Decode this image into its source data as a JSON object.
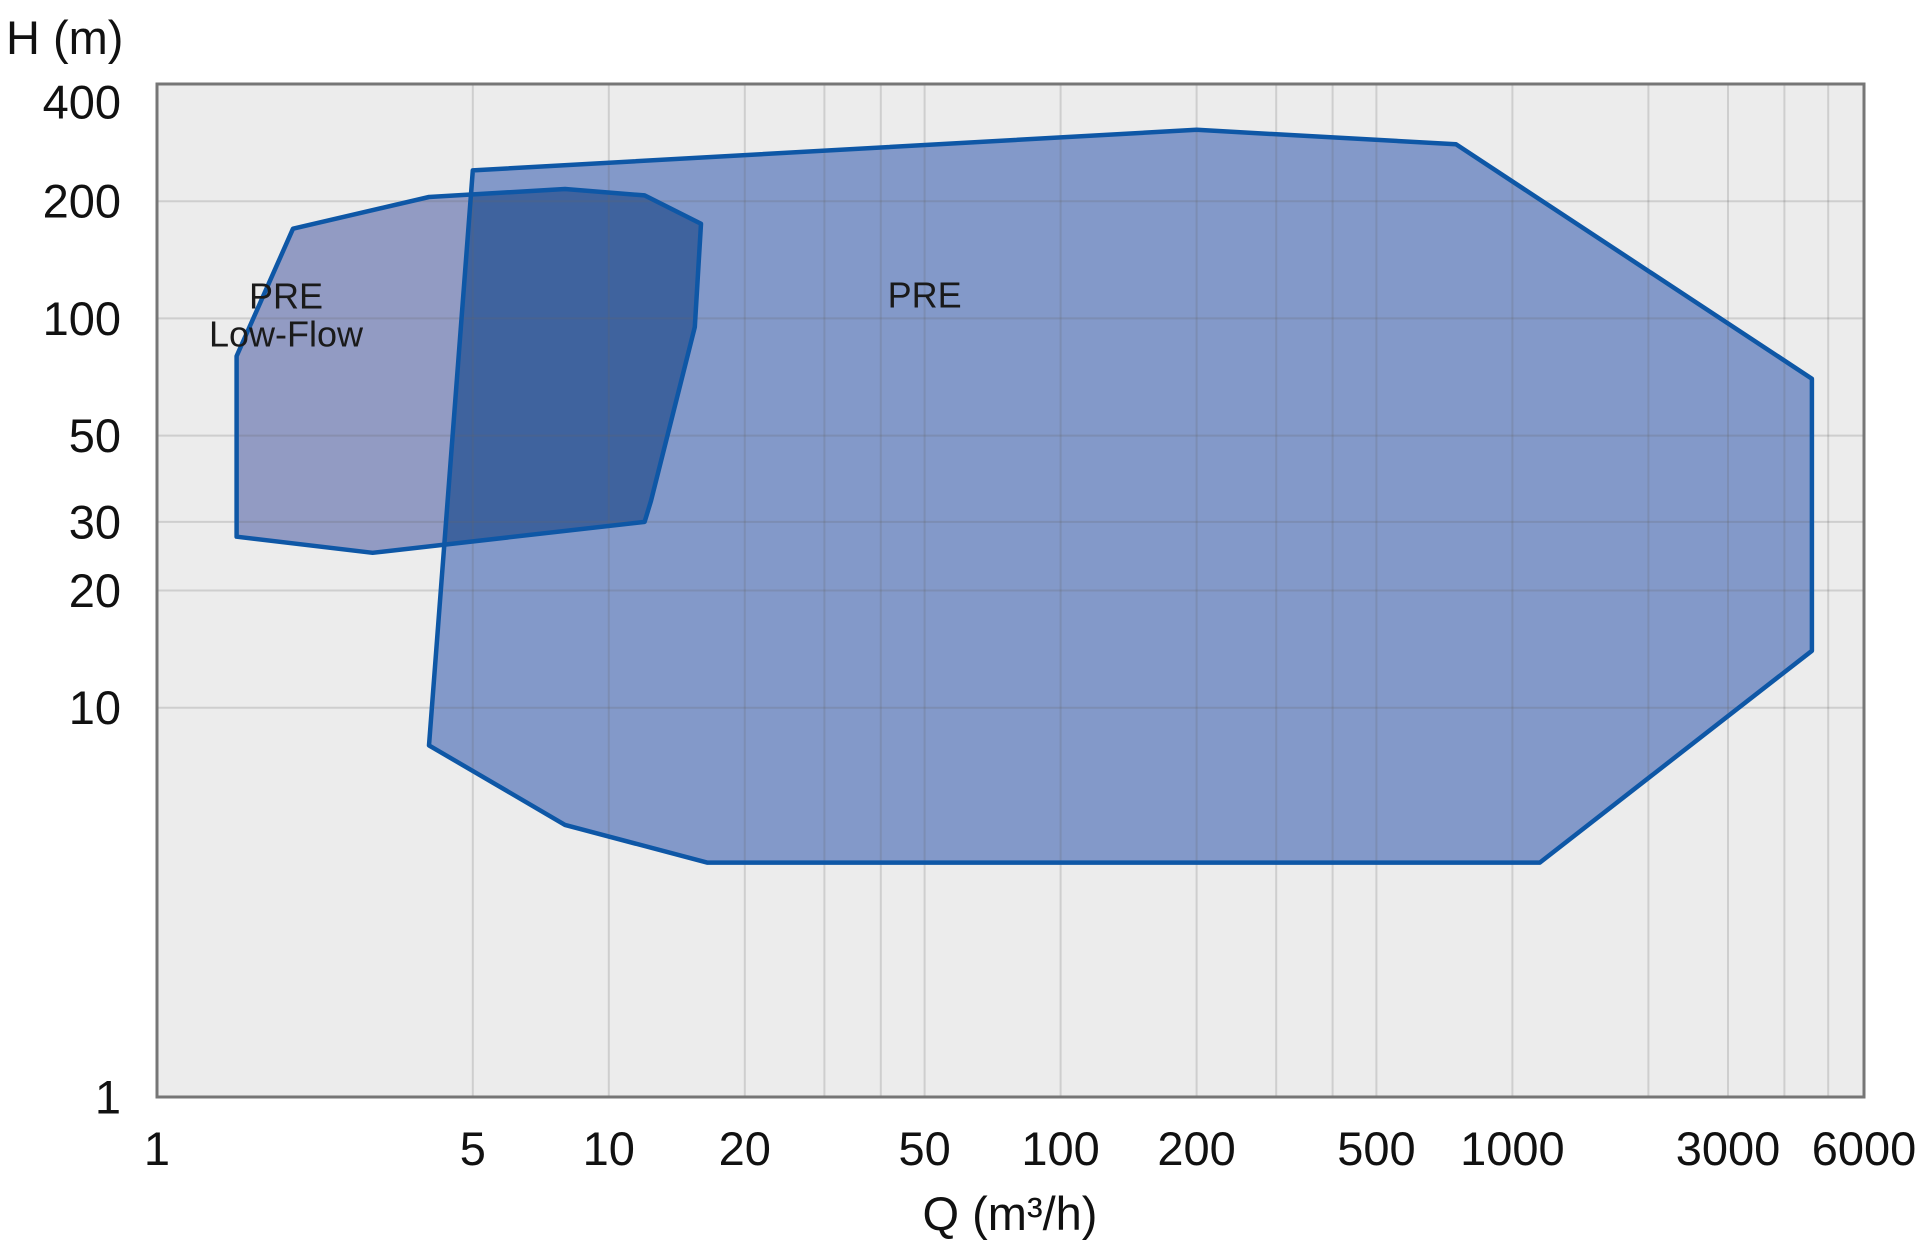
{
  "chart_data": {
    "type": "area",
    "title": "",
    "xlabel": "Q (m³/h)",
    "ylabel": "H (m)",
    "x_scale": "log",
    "y_scale": "log",
    "x_range": [
      1,
      6000
    ],
    "y_range": [
      1,
      400
    ],
    "grid": true,
    "legend_position": "none",
    "x_gridlines": [
      5,
      10,
      20,
      30,
      40,
      50,
      100,
      200,
      300,
      400,
      500,
      1000,
      2000,
      3000,
      4000,
      5000
    ],
    "y_gridlines": [
      10,
      20,
      30,
      50,
      100,
      200
    ],
    "x_ticks": [
      {
        "value": 1,
        "label": "1"
      },
      {
        "value": 5,
        "label": "5"
      },
      {
        "value": 10,
        "label": "10"
      },
      {
        "value": 20,
        "label": "20"
      },
      {
        "value": 50,
        "label": "50"
      },
      {
        "value": 100,
        "label": "100"
      },
      {
        "value": 200,
        "label": "200"
      },
      {
        "value": 500,
        "label": "500"
      },
      {
        "value": 1000,
        "label": "1000"
      },
      {
        "value": 3000,
        "label": "3000"
      },
      {
        "value": 6000,
        "label": "6000"
      }
    ],
    "y_ticks": [
      {
        "value": 400,
        "label": "400"
      },
      {
        "value": 200,
        "label": "200"
      },
      {
        "value": 100,
        "label": "100"
      },
      {
        "value": 50,
        "label": "50"
      },
      {
        "value": 30,
        "label": "30"
      },
      {
        "value": 20,
        "label": "20"
      },
      {
        "value": 10,
        "label": "10"
      },
      {
        "value": 1,
        "label": "1"
      }
    ],
    "regions": [
      {
        "id": "pre",
        "name": "PRE",
        "label_lines": [
          "PRE"
        ],
        "label_at": {
          "q": 50,
          "h": 115
        },
        "fill": "#8399c9",
        "vertices": [
          [
            5,
            240
          ],
          [
            200,
            305
          ],
          [
            750,
            280
          ],
          [
            4600,
            70
          ],
          [
            4600,
            14
          ],
          [
            1150,
            4
          ],
          [
            16.5,
            4
          ],
          [
            8,
            5
          ],
          [
            4,
            8
          ]
        ]
      },
      {
        "id": "pre-low-flow",
        "name": "PRE Low-Flow",
        "label_lines": [
          "PRE",
          "Low-Flow"
        ],
        "label_at": {
          "q": 1.93,
          "h": 102
        },
        "fill": "#929bc3",
        "vertices": [
          [
            2,
            170
          ],
          [
            4,
            205
          ],
          [
            8,
            215
          ],
          [
            12,
            207
          ],
          [
            16,
            175
          ],
          [
            15.5,
            95
          ],
          [
            12.4,
            34
          ],
          [
            12,
            30
          ],
          [
            3,
            25
          ],
          [
            1.5,
            27.5
          ],
          [
            1.5,
            80
          ]
        ]
      }
    ],
    "overlap_fill": "#3f639e",
    "colors": {
      "page_background": "#ffffff",
      "plot_background": "#ececec",
      "gridline": "rgba(100,100,100,0.22)",
      "plot_border": "#767676",
      "region_stroke": "#0e57a6",
      "text": "#111111",
      "region_label_text": "#1a1a1a"
    }
  }
}
